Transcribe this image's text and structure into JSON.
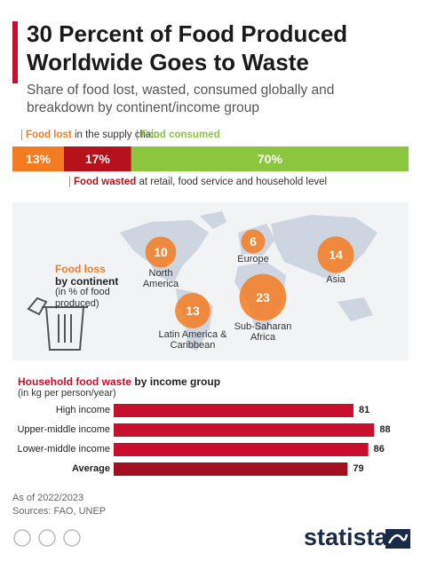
{
  "title": "30 Percent of Food Produced Worldwide Goes to Waste",
  "subtitle": "Share of food lost, wasted, consumed globally and breakdown by continent/income group",
  "chart_data": [
    {
      "type": "stacked-bar",
      "series": [
        {
          "name": "Food lost",
          "note": "in the supply chain",
          "color": "#f47b20",
          "values": [
            13
          ],
          "value_labels": [
            "13%"
          ]
        },
        {
          "name": "Food wasted",
          "note": "at retail, food service and household level",
          "color": "#b5121b",
          "values": [
            17
          ],
          "value_labels": [
            "17%"
          ]
        },
        {
          "name": "Food consumed",
          "color": "#8cc63f",
          "values": [
            70
          ],
          "value_labels": [
            "70%"
          ]
        }
      ],
      "xlim": [
        0,
        100
      ]
    },
    {
      "type": "bubble-map",
      "title": "Food loss",
      "subtitle": "by continent",
      "note": "(in % of food produced)",
      "color": "#f47b20",
      "categories": [
        "North America",
        "Europe",
        "Asia",
        "Sub-Saharan Africa",
        "Latin America & Caribbean"
      ],
      "values": [
        10,
        6,
        14,
        23,
        13
      ]
    },
    {
      "type": "hbar",
      "title": "Household food waste",
      "subtitle": "by income group",
      "note": "(in kg per person/year)",
      "categories": [
        "High income",
        "Upper-middle income",
        "Lower-middle income",
        "Average"
      ],
      "values": [
        81,
        88,
        86,
        79
      ],
      "colors": [
        "#c8102e",
        "#c8102e",
        "#c8102e",
        "#a30f1f"
      ],
      "xlim": [
        0,
        90
      ]
    }
  ],
  "footer": {
    "date": "As of 2022/2023",
    "source": "Sources: FAO, UNEP",
    "brand": "statista"
  }
}
